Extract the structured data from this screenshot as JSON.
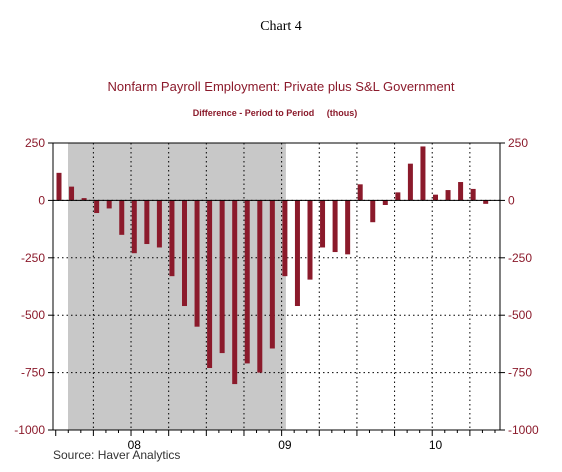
{
  "page": {
    "chart_number": "Chart 4",
    "source": "Source: Haver Analytics"
  },
  "colors": {
    "bar": "#8b1a2b",
    "recession_shading": "#c8c8c8",
    "title": "#8b1a2b"
  },
  "chart_data": {
    "type": "bar",
    "title": "Nonfarm Payroll Employment: Private plus S&L Government",
    "subtitle": "Difference - Period to Period     (thous)",
    "xlabel": "",
    "ylabel": "",
    "ylim": [
      -1000,
      250
    ],
    "yticks": [
      250,
      0,
      -250,
      -500,
      -750,
      -1000
    ],
    "ytick_labels": [
      "250",
      "0",
      "-250",
      "-500",
      "-750",
      "-1000"
    ],
    "grid": true,
    "year_labels": [
      {
        "label": "08",
        "month_index": 6
      },
      {
        "label": "09",
        "month_index": 18
      },
      {
        "label": "10",
        "month_index": 30
      }
    ],
    "recession_shading": {
      "from_index": 0,
      "to_index": 17
    },
    "start": "2007-12",
    "values": [
      120,
      60,
      10,
      -55,
      -35,
      -150,
      -230,
      -190,
      -205,
      -330,
      -460,
      -550,
      -730,
      -665,
      -800,
      -710,
      -750,
      -645,
      -330,
      -460,
      -345,
      -205,
      -225,
      -235,
      70,
      -95,
      -20,
      35,
      160,
      235,
      25,
      45,
      80,
      50,
      -15
    ]
  }
}
